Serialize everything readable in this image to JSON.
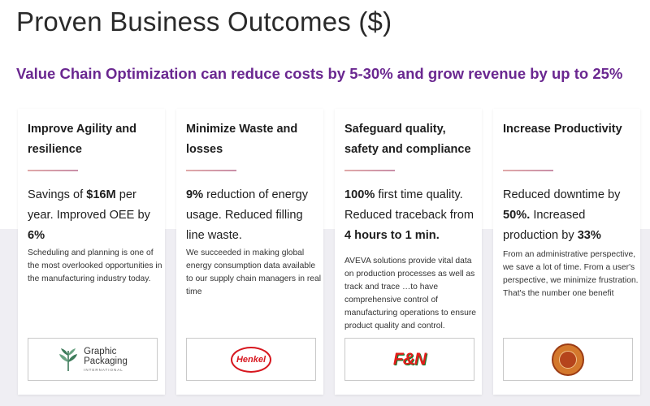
{
  "title": "Proven Business Outcomes ($)",
  "subtitle": "Value Chain Optimization can reduce costs by 5-30% and grow revenue by up to 25%",
  "cards": [
    {
      "heading": "Improve Agility and resilience",
      "metric": [
        {
          "text": "Savings of ",
          "bold": false
        },
        {
          "text": "$16M",
          "bold": true
        },
        {
          "text": " per year. Improved OEE by ",
          "bold": false
        },
        {
          "text": "6%",
          "bold": true
        }
      ],
      "description": "Scheduling and planning is one of the most overlooked opportunities in the manufacturing industry today.",
      "logo": {
        "name": "Graphic Packaging",
        "line1": "Graphic",
        "line2": "Packaging",
        "line3": "INTERNATIONAL"
      }
    },
    {
      "heading": "Minimize Waste and losses",
      "metric": [
        {
          "text": "9%",
          "bold": true
        },
        {
          "text": " reduction of energy usage. Reduced filling line waste.",
          "bold": false
        }
      ],
      "description": "We succeeded in making global energy consumption data available to our supply chain managers in real time",
      "logo": {
        "name": "Henkel",
        "text": "Henkel"
      }
    },
    {
      "heading": "Safeguard quality, safety and compliance",
      "metric": [
        {
          "text": "100%",
          "bold": true
        },
        {
          "text": " first time quality. Reduced traceback from ",
          "bold": false
        },
        {
          "text": "4 hours to 1 min.",
          "bold": true
        }
      ],
      "description": "AVEVA solutions provide vital data on production processes as well as track and trace …to have comprehensive control of manufacturing operations to ensure product quality and control.",
      "logo": {
        "name": "F&N",
        "text": "F&N"
      }
    },
    {
      "heading": "Increase Productivity",
      "metric": [
        {
          "text": "Reduced downtime by ",
          "bold": false
        },
        {
          "text": "50%.",
          "bold": true
        },
        {
          "text": " Increased production by ",
          "bold": false
        },
        {
          "text": "33%",
          "bold": true
        }
      ],
      "description": "From an administrative perspective, we save a lot of time. From a user's perspective, we minimize frustration. That's the number one benefit",
      "logo": {
        "name": "round-seal"
      }
    }
  ],
  "colors": {
    "subtitle": "#6a2790",
    "band": "#efeef3",
    "rule": "#d9a0a8"
  }
}
